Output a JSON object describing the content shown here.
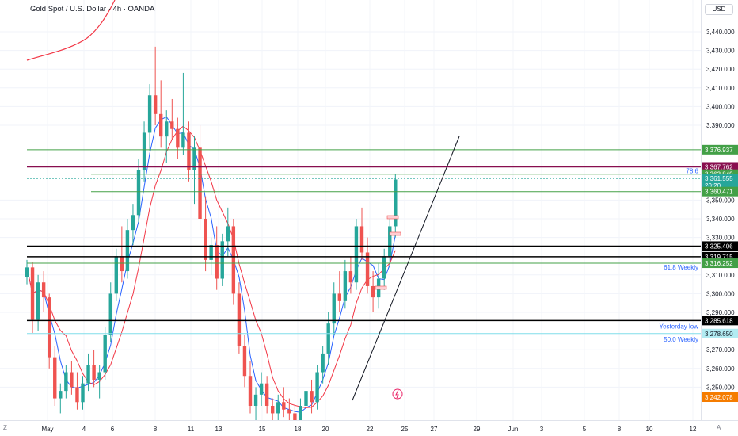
{
  "header": {
    "title": "Gold Spot / U.S. Dollar · 4h · OANDA",
    "currency_button": "USD"
  },
  "footer": {
    "left_button": "Z",
    "right_button": "A"
  },
  "chart_data": {
    "type": "candlestick",
    "symbol": "Gold Spot / U.S. Dollar",
    "interval": "4h",
    "source": "OANDA",
    "currency": "USD",
    "y_ticks": [
      3250,
      3260,
      3270,
      3290,
      3300,
      3310,
      3330,
      3340,
      3350,
      3390,
      3400,
      3410,
      3420,
      3430,
      3440
    ],
    "x_ticks": [
      "May",
      "4",
      "6",
      "8",
      "11",
      "13",
      "15",
      "18",
      "20",
      "22",
      "25",
      "27",
      "29",
      "Jun",
      "3",
      "5",
      "8",
      "10",
      "12"
    ],
    "price_tags": [
      {
        "value": "3,376.937",
        "color": "#43a047"
      },
      {
        "value": "3,367.762",
        "color": "#880e4f"
      },
      {
        "value": "3,363.849",
        "color": "#43a047"
      },
      {
        "value": "3,361.555",
        "color": "#26a69a"
      },
      {
        "value": "20:20",
        "color": "#26a69a"
      },
      {
        "value": "3,360.471",
        "color": "#43a047"
      },
      {
        "value": "3,325.406",
        "color": "#000000"
      },
      {
        "value": "3,319.715",
        "color": "#000000"
      },
      {
        "value": "3,316.252",
        "color": "#43a047"
      },
      {
        "value": "3,285.618",
        "color": "#000000"
      },
      {
        "value": "3,278.650",
        "color": "#b2ebf2"
      },
      {
        "value": "3,242.078",
        "color": "#f57c00"
      }
    ],
    "annotations": [
      "78.6",
      "61.8 Weekly",
      "Yesterday low",
      "50.0 Weekly"
    ],
    "colors": {
      "up": "#26a69a",
      "down": "#ef5350",
      "ma_fast": "#2962ff",
      "ma_slow": "#f23645"
    }
  }
}
